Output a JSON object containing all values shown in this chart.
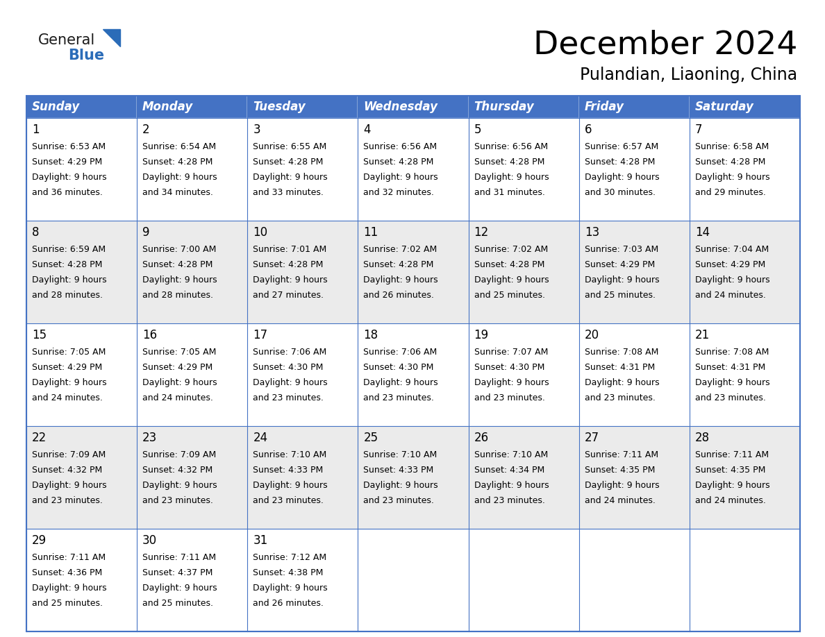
{
  "title": "December 2024",
  "subtitle": "Pulandian, Liaoning, China",
  "days_of_week": [
    "Sunday",
    "Monday",
    "Tuesday",
    "Wednesday",
    "Thursday",
    "Friday",
    "Saturday"
  ],
  "header_bg": "#4472C4",
  "header_text": "#FFFFFF",
  "cell_bg_even": "#FFFFFF",
  "cell_bg_odd": "#EBEBEB",
  "cell_text": "#000000",
  "border_color": "#4472C4",
  "calendar_data": [
    [
      {
        "day": 1,
        "sunrise": "6:53 AM",
        "sunset": "4:29 PM",
        "daylight": "9 hours and 36 minutes."
      },
      {
        "day": 2,
        "sunrise": "6:54 AM",
        "sunset": "4:28 PM",
        "daylight": "9 hours and 34 minutes."
      },
      {
        "day": 3,
        "sunrise": "6:55 AM",
        "sunset": "4:28 PM",
        "daylight": "9 hours and 33 minutes."
      },
      {
        "day": 4,
        "sunrise": "6:56 AM",
        "sunset": "4:28 PM",
        "daylight": "9 hours and 32 minutes."
      },
      {
        "day": 5,
        "sunrise": "6:56 AM",
        "sunset": "4:28 PM",
        "daylight": "9 hours and 31 minutes."
      },
      {
        "day": 6,
        "sunrise": "6:57 AM",
        "sunset": "4:28 PM",
        "daylight": "9 hours and 30 minutes."
      },
      {
        "day": 7,
        "sunrise": "6:58 AM",
        "sunset": "4:28 PM",
        "daylight": "9 hours and 29 minutes."
      }
    ],
    [
      {
        "day": 8,
        "sunrise": "6:59 AM",
        "sunset": "4:28 PM",
        "daylight": "9 hours and 28 minutes."
      },
      {
        "day": 9,
        "sunrise": "7:00 AM",
        "sunset": "4:28 PM",
        "daylight": "9 hours and 28 minutes."
      },
      {
        "day": 10,
        "sunrise": "7:01 AM",
        "sunset": "4:28 PM",
        "daylight": "9 hours and 27 minutes."
      },
      {
        "day": 11,
        "sunrise": "7:02 AM",
        "sunset": "4:28 PM",
        "daylight": "9 hours and 26 minutes."
      },
      {
        "day": 12,
        "sunrise": "7:02 AM",
        "sunset": "4:28 PM",
        "daylight": "9 hours and 25 minutes."
      },
      {
        "day": 13,
        "sunrise": "7:03 AM",
        "sunset": "4:29 PM",
        "daylight": "9 hours and 25 minutes."
      },
      {
        "day": 14,
        "sunrise": "7:04 AM",
        "sunset": "4:29 PM",
        "daylight": "9 hours and 24 minutes."
      }
    ],
    [
      {
        "day": 15,
        "sunrise": "7:05 AM",
        "sunset": "4:29 PM",
        "daylight": "9 hours and 24 minutes."
      },
      {
        "day": 16,
        "sunrise": "7:05 AM",
        "sunset": "4:29 PM",
        "daylight": "9 hours and 24 minutes."
      },
      {
        "day": 17,
        "sunrise": "7:06 AM",
        "sunset": "4:30 PM",
        "daylight": "9 hours and 23 minutes."
      },
      {
        "day": 18,
        "sunrise": "7:06 AM",
        "sunset": "4:30 PM",
        "daylight": "9 hours and 23 minutes."
      },
      {
        "day": 19,
        "sunrise": "7:07 AM",
        "sunset": "4:30 PM",
        "daylight": "9 hours and 23 minutes."
      },
      {
        "day": 20,
        "sunrise": "7:08 AM",
        "sunset": "4:31 PM",
        "daylight": "9 hours and 23 minutes."
      },
      {
        "day": 21,
        "sunrise": "7:08 AM",
        "sunset": "4:31 PM",
        "daylight": "9 hours and 23 minutes."
      }
    ],
    [
      {
        "day": 22,
        "sunrise": "7:09 AM",
        "sunset": "4:32 PM",
        "daylight": "9 hours and 23 minutes."
      },
      {
        "day": 23,
        "sunrise": "7:09 AM",
        "sunset": "4:32 PM",
        "daylight": "9 hours and 23 minutes."
      },
      {
        "day": 24,
        "sunrise": "7:10 AM",
        "sunset": "4:33 PM",
        "daylight": "9 hours and 23 minutes."
      },
      {
        "day": 25,
        "sunrise": "7:10 AM",
        "sunset": "4:33 PM",
        "daylight": "9 hours and 23 minutes."
      },
      {
        "day": 26,
        "sunrise": "7:10 AM",
        "sunset": "4:34 PM",
        "daylight": "9 hours and 23 minutes."
      },
      {
        "day": 27,
        "sunrise": "7:11 AM",
        "sunset": "4:35 PM",
        "daylight": "9 hours and 24 minutes."
      },
      {
        "day": 28,
        "sunrise": "7:11 AM",
        "sunset": "4:35 PM",
        "daylight": "9 hours and 24 minutes."
      }
    ],
    [
      {
        "day": 29,
        "sunrise": "7:11 AM",
        "sunset": "4:36 PM",
        "daylight": "9 hours and 25 minutes."
      },
      {
        "day": 30,
        "sunrise": "7:11 AM",
        "sunset": "4:37 PM",
        "daylight": "9 hours and 25 minutes."
      },
      {
        "day": 31,
        "sunrise": "7:12 AM",
        "sunset": "4:38 PM",
        "daylight": "9 hours and 26 minutes."
      },
      null,
      null,
      null,
      null
    ]
  ],
  "logo_general_color": "#1a1a1a",
  "logo_blue_color": "#2B6CB8",
  "title_fontsize": 34,
  "subtitle_fontsize": 17,
  "header_fontsize": 12,
  "day_num_fontsize": 12,
  "cell_fontsize": 9.0
}
